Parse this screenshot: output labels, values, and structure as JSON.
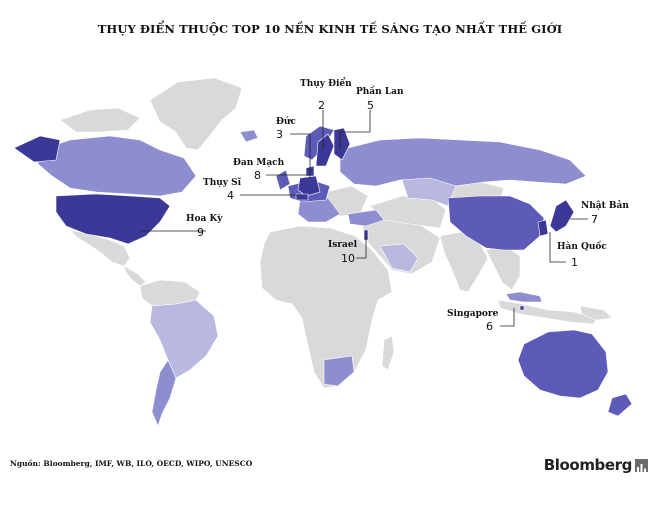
{
  "title": "THỤY ĐIỂN THUỘC TOP 10 NỀN KINH TẾ SÁNG TẠO NHẤT THẾ GIỚI",
  "colors": {
    "rank_dark": "#3b3898",
    "rank_mid": "#5c5bb8",
    "rank_light": "#8e8dcf",
    "rank_pale": "#b9b8e0",
    "no_data": "#d9d9d9",
    "ocean": "#ffffff"
  },
  "countries": [
    {
      "name": "Hàn Quốc",
      "rank": 1
    },
    {
      "name": "Thụy Điển",
      "rank": 2
    },
    {
      "name": "Đức",
      "rank": 3
    },
    {
      "name": "Thụy Sĩ",
      "rank": 4
    },
    {
      "name": "Phần Lan",
      "rank": 5
    },
    {
      "name": "Singapore",
      "rank": 6
    },
    {
      "name": "Nhật Bản",
      "rank": 7
    },
    {
      "name": "Đan Mạch",
      "rank": 8
    },
    {
      "name": "Hoa Kỳ",
      "rank": 9
    },
    {
      "name": "Israel",
      "rank": 10
    }
  ],
  "source": "Nguồn: Bloomberg, IMF, WB, ILO, OECD, WIPO, UNESCO",
  "brand": "Bloomberg"
}
